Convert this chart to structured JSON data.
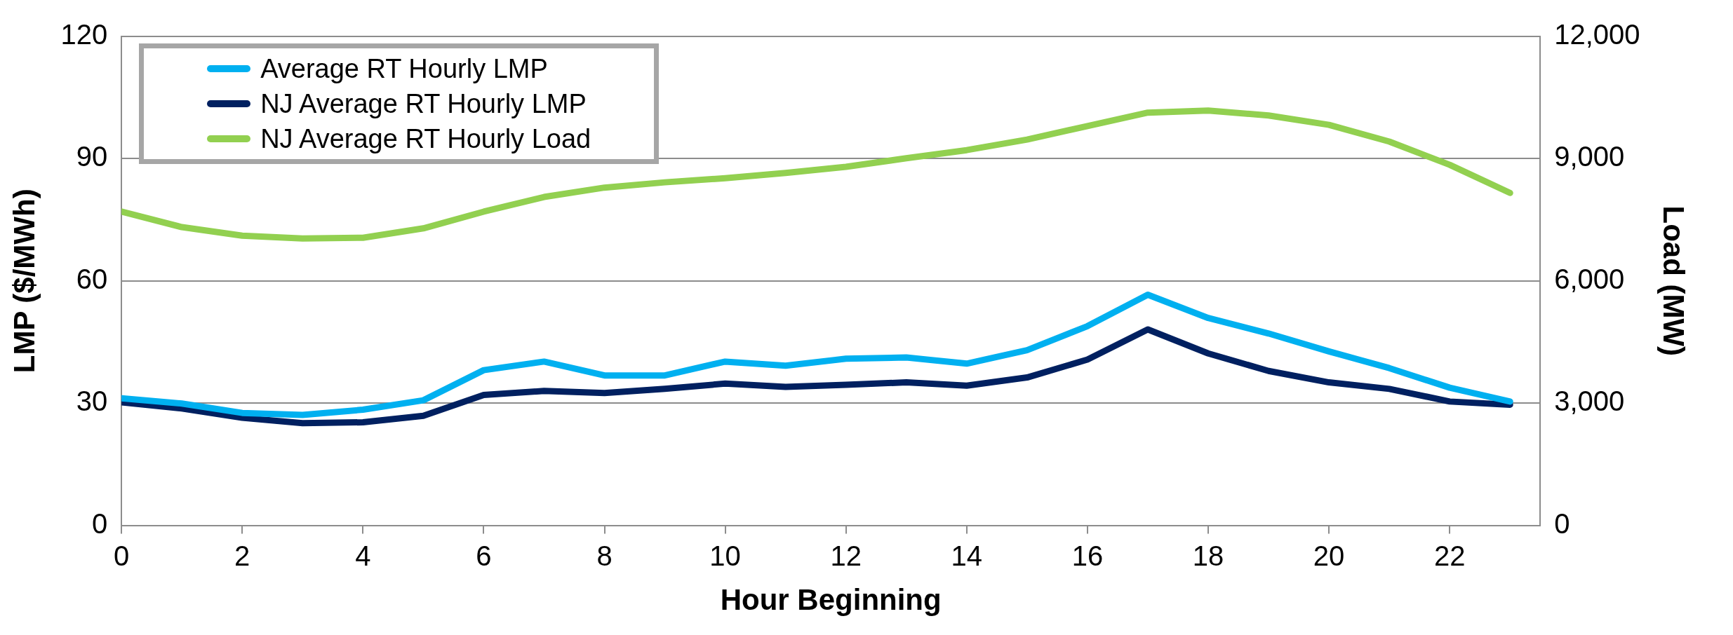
{
  "chart_data": {
    "type": "line",
    "xlabel": "Hour Beginning",
    "ylabel": "LMP ($/MWh)",
    "y2label": "Load (MW)",
    "x": [
      0,
      1,
      2,
      3,
      4,
      5,
      6,
      7,
      8,
      9,
      10,
      11,
      12,
      13,
      14,
      15,
      16,
      17,
      18,
      19,
      20,
      21,
      22,
      23
    ],
    "xlim": [
      0,
      23.5
    ],
    "xticks": [
      0,
      2,
      4,
      6,
      8,
      10,
      12,
      14,
      16,
      18,
      20,
      22
    ],
    "ylim": [
      0,
      120
    ],
    "yticks": [
      0,
      30,
      60,
      90,
      120
    ],
    "y2lim": [
      0,
      12000
    ],
    "y2ticks": [
      {
        "value": 0,
        "label": "0"
      },
      {
        "value": 3000,
        "label": "3,000"
      },
      {
        "value": 6000,
        "label": "6,000"
      },
      {
        "value": 9000,
        "label": "9,000"
      },
      {
        "value": 12000,
        "label": "12,000"
      }
    ],
    "grid": "y",
    "legend": "top left",
    "marker": "none",
    "line_style": "solid",
    "series": [
      {
        "name": "Average RT Hourly LMP",
        "color": "#00b0f0",
        "values": [
          31.2,
          29.9,
          27.6,
          27.1,
          28.4,
          30.7,
          38.1,
          40.2,
          36.8,
          36.8,
          40.2,
          39.2,
          40.9,
          41.2,
          39.7,
          43.0,
          48.9,
          56.6,
          50.9,
          47.1,
          42.7,
          38.6,
          33.8,
          30.4
        ]
      },
      {
        "name": "NJ Average RT Hourly LMP",
        "color": "#002060",
        "values": [
          30.2,
          28.7,
          26.4,
          25.1,
          25.3,
          26.9,
          32.0,
          33.0,
          32.5,
          33.5,
          34.8,
          34.0,
          34.5,
          35.1,
          34.3,
          36.3,
          40.7,
          48.1,
          42.2,
          37.9,
          35.1,
          33.5,
          30.4,
          29.6
        ]
      },
      {
        "name": "NJ Average RT Hourly Load",
        "color": "#92d050",
        "axis": "y2",
        "values": [
          7700,
          7320,
          7110,
          7040,
          7060,
          7290,
          7700,
          8060,
          8290,
          8420,
          8520,
          8650,
          8800,
          9010,
          9210,
          9470,
          9800,
          10130,
          10180,
          10060,
          9830,
          9420,
          8850,
          8160
        ]
      }
    ]
  }
}
